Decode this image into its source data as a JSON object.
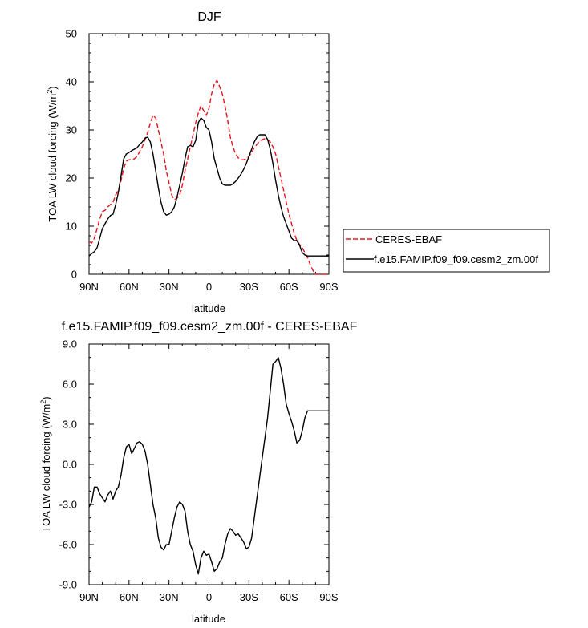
{
  "chart_data": [
    {
      "type": "line",
      "title": "DJF",
      "xlabel": "latitude",
      "ylabel": "TOA LW cloud forcing (W/m²)",
      "ylabel_main": "TOA LW cloud forcing (W/m",
      "ylabel_sup": "2",
      "ylabel_end": ")",
      "xlim": [
        90,
        -90
      ],
      "ylim": [
        0,
        50
      ],
      "x_ticks": [
        90,
        60,
        30,
        0,
        -30,
        -60,
        -90
      ],
      "x_tick_labels": [
        "90N",
        "60N",
        "30N",
        "0",
        "30S",
        "60S",
        "90S"
      ],
      "y_ticks": [
        0,
        10,
        20,
        30,
        40,
        50
      ],
      "y_tick_labels": [
        "0",
        "10",
        "20",
        "30",
        "40",
        "50"
      ],
      "legend": "right",
      "series": [
        {
          "name": "CERES-EBAF",
          "color": "#e8141b",
          "dash": "dashed",
          "x": [
            90,
            88,
            86,
            84,
            82,
            80,
            78,
            76,
            74,
            72,
            70,
            68,
            66,
            64,
            62,
            60,
            58,
            56,
            54,
            52,
            50,
            48,
            46,
            44,
            42,
            40,
            38,
            36,
            34,
            32,
            30,
            28,
            26,
            24,
            22,
            20,
            18,
            16,
            14,
            12,
            10,
            8,
            6,
            4,
            2,
            0,
            -2,
            -4,
            -6,
            -8,
            -10,
            -12,
            -14,
            -16,
            -18,
            -20,
            -22,
            -24,
            -26,
            -28,
            -30,
            -32,
            -34,
            -36,
            -38,
            -40,
            -42,
            -44,
            -46,
            -48,
            -50,
            -52,
            -54,
            -56,
            -58,
            -60,
            -62,
            -64,
            -66,
            -68,
            -70,
            -72,
            -74,
            -76,
            -78,
            -80,
            -82,
            -84,
            -86,
            -88,
            -90
          ],
          "y": [
            6.8,
            6.5,
            7.5,
            9.5,
            11.5,
            13.0,
            13.3,
            14.0,
            14.5,
            15.0,
            16.5,
            17.5,
            19.5,
            22.0,
            23.5,
            23.8,
            23.8,
            24.0,
            24.5,
            25.5,
            26.5,
            28.0,
            29.5,
            31.5,
            33.0,
            32.5,
            30.0,
            27.5,
            25.0,
            21.5,
            19.0,
            16.5,
            15.5,
            15.8,
            16.5,
            18.5,
            21.5,
            24.0,
            26.5,
            29.0,
            31.5,
            33.5,
            35.0,
            34.0,
            33.0,
            34.5,
            37.5,
            39.5,
            40.3,
            39.0,
            37.5,
            35.0,
            32.0,
            28.5,
            26.5,
            25.0,
            24.2,
            23.8,
            23.8,
            24.0,
            24.5,
            25.3,
            26.3,
            27.0,
            27.7,
            28.0,
            28.2,
            28.0,
            27.5,
            26.5,
            25.0,
            22.5,
            20.0,
            17.5,
            15.0,
            12.5,
            10.5,
            8.5,
            7.0,
            6.2,
            5.5,
            4.5,
            3.5,
            2.0,
            0.8,
            0.0,
            0.0,
            0.0,
            0.0,
            0.0,
            0.0
          ]
        },
        {
          "name": "f.e15.FAMIP.f09_f09.cesm2_zm.00f",
          "color": "#000000",
          "dash": "solid",
          "x": [
            90,
            88,
            86,
            84,
            82,
            80,
            78,
            76,
            74,
            72,
            70,
            68,
            66,
            64,
            62,
            60,
            58,
            56,
            54,
            52,
            50,
            48,
            46,
            44,
            42,
            40,
            38,
            36,
            34,
            32,
            30,
            28,
            26,
            24,
            22,
            20,
            18,
            16,
            14,
            12,
            10,
            8,
            6,
            4,
            2,
            0,
            -2,
            -4,
            -6,
            -8,
            -10,
            -12,
            -14,
            -16,
            -18,
            -20,
            -22,
            -24,
            -26,
            -28,
            -30,
            -32,
            -34,
            -36,
            -38,
            -40,
            -42,
            -44,
            -46,
            -48,
            -50,
            -52,
            -54,
            -56,
            -58,
            -60,
            -62,
            -64,
            -66,
            -68,
            -70,
            -72,
            -74,
            -76,
            -78,
            -80,
            -82,
            -84,
            -86,
            -88,
            -90
          ],
          "y": [
            3.8,
            4.3,
            4.7,
            5.5,
            7.5,
            9.5,
            10.5,
            11.5,
            12.2,
            12.5,
            14.5,
            17.0,
            20.5,
            24.0,
            25.0,
            25.3,
            25.7,
            26.0,
            26.3,
            27.0,
            27.5,
            28.3,
            28.5,
            27.5,
            25.0,
            21.5,
            18.0,
            15.0,
            13.0,
            12.3,
            12.5,
            13.0,
            14.0,
            16.0,
            18.5,
            21.0,
            24.0,
            26.5,
            26.8,
            26.5,
            27.8,
            31.5,
            32.5,
            32.0,
            30.5,
            30.0,
            27.5,
            24.0,
            22.0,
            20.0,
            18.8,
            18.5,
            18.5,
            18.5,
            18.8,
            19.3,
            20.0,
            20.8,
            21.8,
            23.0,
            24.5,
            26.0,
            27.5,
            28.5,
            29.0,
            29.0,
            29.0,
            28.0,
            26.0,
            23.0,
            19.5,
            16.5,
            14.0,
            12.0,
            10.5,
            9.0,
            7.5,
            7.0,
            7.0,
            6.0,
            4.5,
            4.0,
            3.8,
            3.8,
            3.8,
            3.8,
            3.8,
            3.8,
            3.8,
            3.8,
            3.8
          ]
        }
      ]
    },
    {
      "type": "line",
      "title": "f.e15.FAMIP.f09_f09.cesm2_zm.00f - CERES-EBAF",
      "xlabel": "latitude",
      "ylabel": "TOA LW cloud forcing (W/m²)",
      "ylabel_main": "TOA LW cloud forcing (W/m",
      "ylabel_sup": "2",
      "ylabel_end": ")",
      "xlim": [
        90,
        -90
      ],
      "ylim": [
        -9.0,
        9.0
      ],
      "x_ticks": [
        90,
        60,
        30,
        0,
        -30,
        -60,
        -90
      ],
      "x_tick_labels": [
        "90N",
        "60N",
        "30N",
        "0",
        "30S",
        "60S",
        "90S"
      ],
      "y_ticks": [
        -9,
        -6,
        -3,
        0,
        3,
        6,
        9
      ],
      "y_tick_labels": [
        "-9.0",
        "-6.0",
        "-3.0",
        "0.0",
        "3.0",
        "6.0",
        "9.0"
      ],
      "series": [
        {
          "name": "",
          "color": "#000000",
          "dash": "solid",
          "x": [
            90,
            88,
            86,
            84,
            82,
            80,
            78,
            76,
            74,
            72,
            70,
            68,
            66,
            64,
            62,
            60,
            58,
            56,
            54,
            52,
            50,
            48,
            46,
            44,
            42,
            40,
            38,
            36,
            34,
            32,
            30,
            28,
            26,
            24,
            22,
            20,
            18,
            16,
            14,
            12,
            10,
            8,
            6,
            4,
            2,
            0,
            -2,
            -4,
            -6,
            -8,
            -10,
            -12,
            -14,
            -16,
            -18,
            -20,
            -22,
            -24,
            -26,
            -28,
            -30,
            -32,
            -34,
            -36,
            -38,
            -40,
            -42,
            -44,
            -46,
            -48,
            -50,
            -52,
            -54,
            -56,
            -58,
            -60,
            -62,
            -64,
            -66,
            -68,
            -70,
            -72,
            -74,
            -76,
            -78,
            -80,
            -82,
            -84,
            -86,
            -88,
            -90
          ],
          "y": [
            -3.2,
            -2.8,
            -1.7,
            -1.7,
            -2.2,
            -2.5,
            -2.8,
            -2.3,
            -2.0,
            -2.6,
            -2.0,
            -1.7,
            -0.8,
            0.5,
            1.3,
            1.5,
            0.8,
            1.2,
            1.6,
            1.7,
            1.5,
            1.0,
            0.0,
            -1.5,
            -3.0,
            -4.0,
            -5.5,
            -6.2,
            -6.4,
            -6.0,
            -6.0,
            -5.0,
            -4.0,
            -3.2,
            -2.8,
            -3.0,
            -3.5,
            -5.0,
            -6.0,
            -6.5,
            -7.5,
            -8.2,
            -7.0,
            -6.5,
            -6.8,
            -6.7,
            -7.3,
            -8.0,
            -7.8,
            -7.3,
            -7.0,
            -6.0,
            -5.2,
            -4.8,
            -5.0,
            -5.3,
            -5.2,
            -5.5,
            -5.8,
            -6.3,
            -6.2,
            -5.5,
            -4.0,
            -2.5,
            -1.0,
            0.5,
            2.0,
            3.5,
            5.5,
            7.5,
            7.7,
            8.0,
            7.2,
            6.0,
            4.5,
            3.8,
            3.2,
            2.5,
            1.6,
            1.8,
            2.5,
            3.5,
            4.0,
            4.0,
            4.0,
            4.0,
            4.0,
            4.0,
            4.0,
            4.0,
            4.0
          ]
        }
      ]
    }
  ]
}
